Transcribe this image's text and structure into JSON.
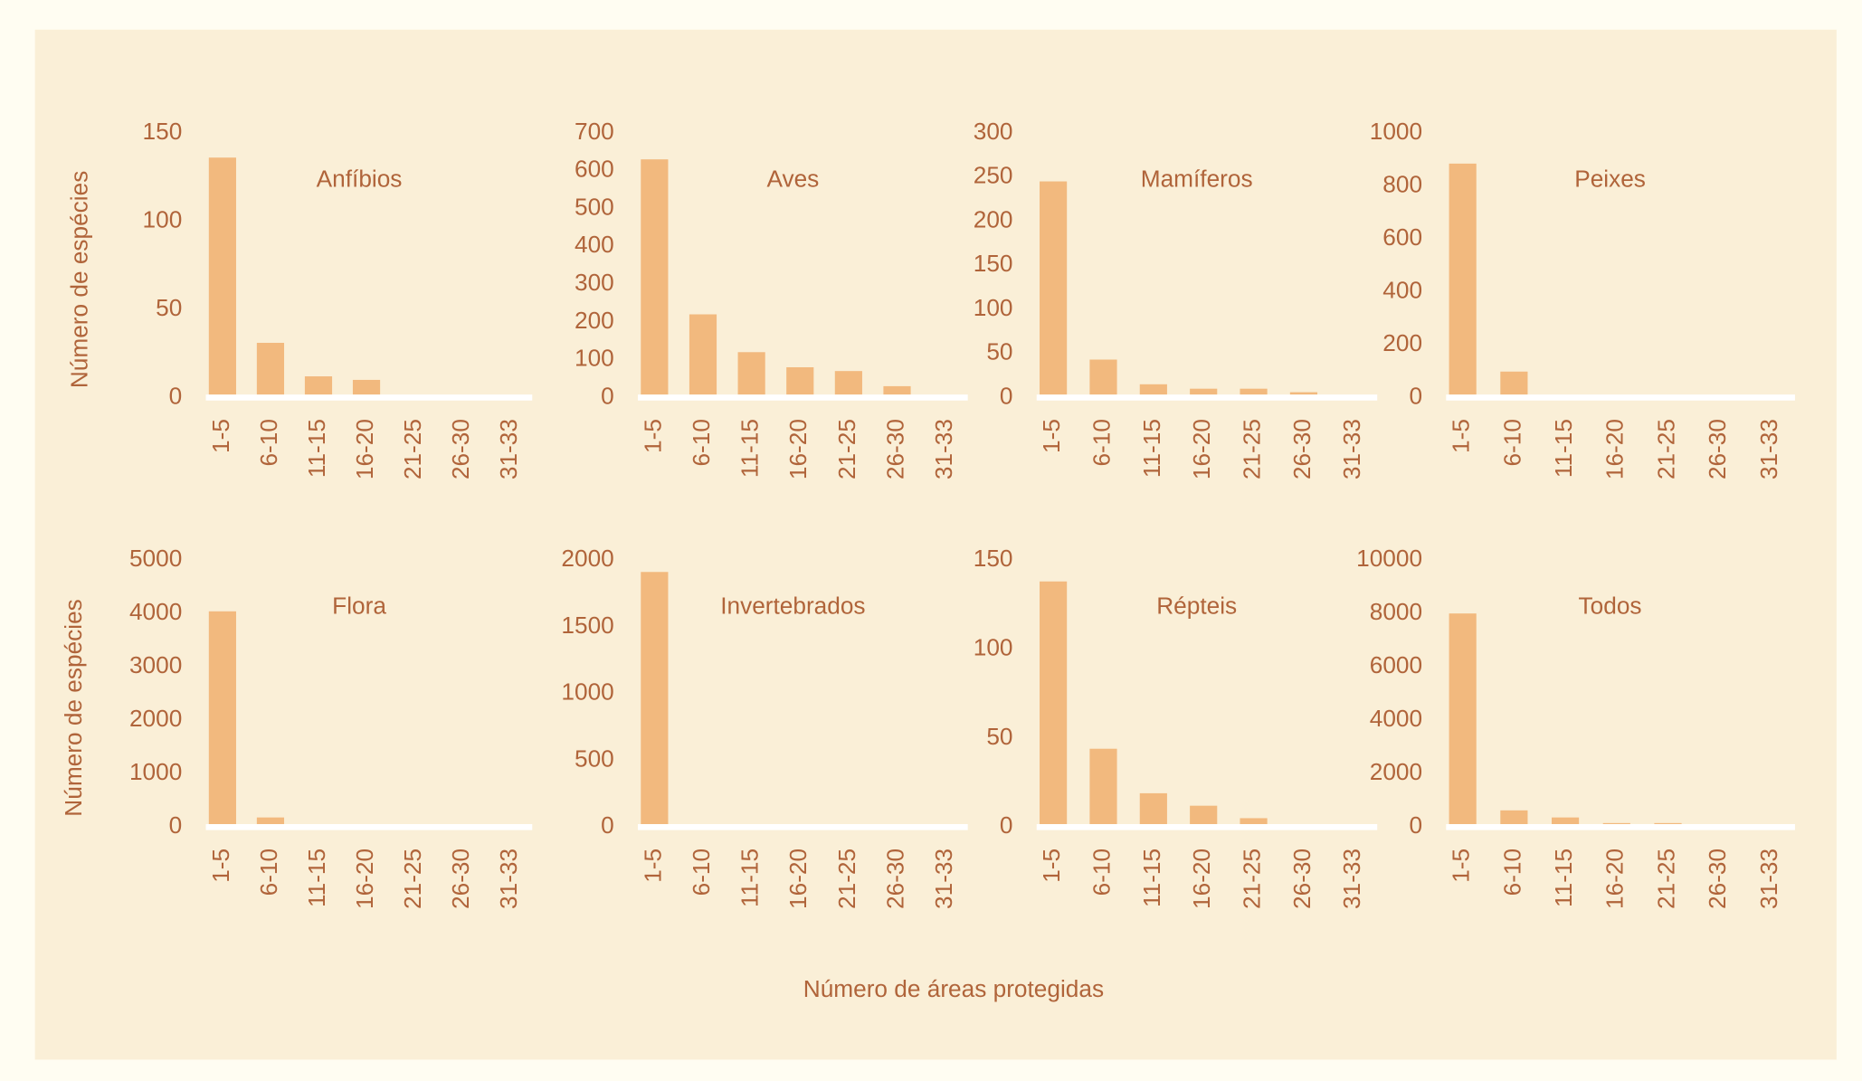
{
  "xlabel": "Número de áreas protegidas",
  "chart_data": [
    {
      "type": "bar",
      "title": "Anfíbios",
      "ylabel": "Número de espécies",
      "color": "#f2b97e",
      "categories": [
        "1-5",
        "6-10",
        "11-15",
        "16-20",
        "21-25",
        "26-30",
        "31-33"
      ],
      "values": [
        136,
        31,
        12,
        10,
        0,
        0,
        0
      ],
      "ylim": [
        0,
        150
      ],
      "yticks": [
        0,
        50,
        100,
        150
      ]
    },
    {
      "type": "bar",
      "title": "Aves",
      "color": "#f2b97e",
      "categories": [
        "1-5",
        "6-10",
        "11-15",
        "16-20",
        "21-25",
        "26-30",
        "31-33"
      ],
      "values": [
        630,
        220,
        120,
        80,
        70,
        30,
        0
      ],
      "ylim": [
        0,
        700
      ],
      "yticks": [
        0,
        100,
        200,
        300,
        400,
        500,
        600,
        700
      ]
    },
    {
      "type": "bar",
      "title": "Mamíferos",
      "color": "#f2b97e",
      "categories": [
        "1-5",
        "6-10",
        "11-15",
        "16-20",
        "21-25",
        "26-30",
        "31-33"
      ],
      "values": [
        245,
        43,
        15,
        10,
        10,
        6,
        0
      ],
      "ylim": [
        0,
        300
      ],
      "yticks": [
        0,
        50,
        100,
        150,
        200,
        250,
        300
      ]
    },
    {
      "type": "bar",
      "title": "Peixes",
      "color": "#f2b97e",
      "categories": [
        "1-5",
        "6-10",
        "11-15",
        "16-20",
        "21-25",
        "26-30",
        "31-33"
      ],
      "values": [
        884,
        98,
        10,
        10,
        0,
        0,
        0
      ],
      "ylim": [
        0,
        1000
      ],
      "yticks": [
        0,
        200,
        400,
        600,
        800,
        1000
      ]
    },
    {
      "type": "bar",
      "title": "Flora",
      "ylabel": "Número de espécies",
      "color": "#f2b97e",
      "categories": [
        "1-5",
        "6-10",
        "11-15",
        "16-20",
        "21-25",
        "26-30",
        "31-33"
      ],
      "values": [
        4040,
        180,
        0,
        0,
        0,
        0,
        0
      ],
      "ylim": [
        0,
        5000
      ],
      "yticks": [
        0,
        1000,
        2000,
        3000,
        4000,
        5000
      ]
    },
    {
      "type": "bar",
      "title": "Invertebrados",
      "color": "#f2b97e",
      "categories": [
        "1-5",
        "6-10",
        "11-15",
        "16-20",
        "21-25",
        "26-30",
        "31-33"
      ],
      "values": [
        1911,
        0,
        0,
        0,
        0,
        0,
        0
      ],
      "ylim": [
        0,
        2000
      ],
      "yticks": [
        0,
        500,
        1000,
        1500,
        2000
      ]
    },
    {
      "type": "bar",
      "title": "Répteis",
      "color": "#f2b97e",
      "categories": [
        "1-5",
        "6-10",
        "11-15",
        "16-20",
        "21-25",
        "26-30",
        "31-33"
      ],
      "values": [
        138,
        44,
        19,
        12,
        5,
        0,
        0
      ],
      "ylim": [
        0,
        150
      ],
      "yticks": [
        0,
        50,
        100,
        150
      ]
    },
    {
      "type": "bar",
      "title": "Todos",
      "color": "#f2b97e",
      "categories": [
        "1-5",
        "6-10",
        "11-15",
        "16-20",
        "21-25",
        "26-30",
        "31-33"
      ],
      "values": [
        8000,
        625,
        360,
        150,
        150,
        0,
        0
      ],
      "ylim": [
        0,
        10000
      ],
      "yticks": [
        0,
        2000,
        4000,
        6000,
        8000,
        10000
      ]
    }
  ]
}
